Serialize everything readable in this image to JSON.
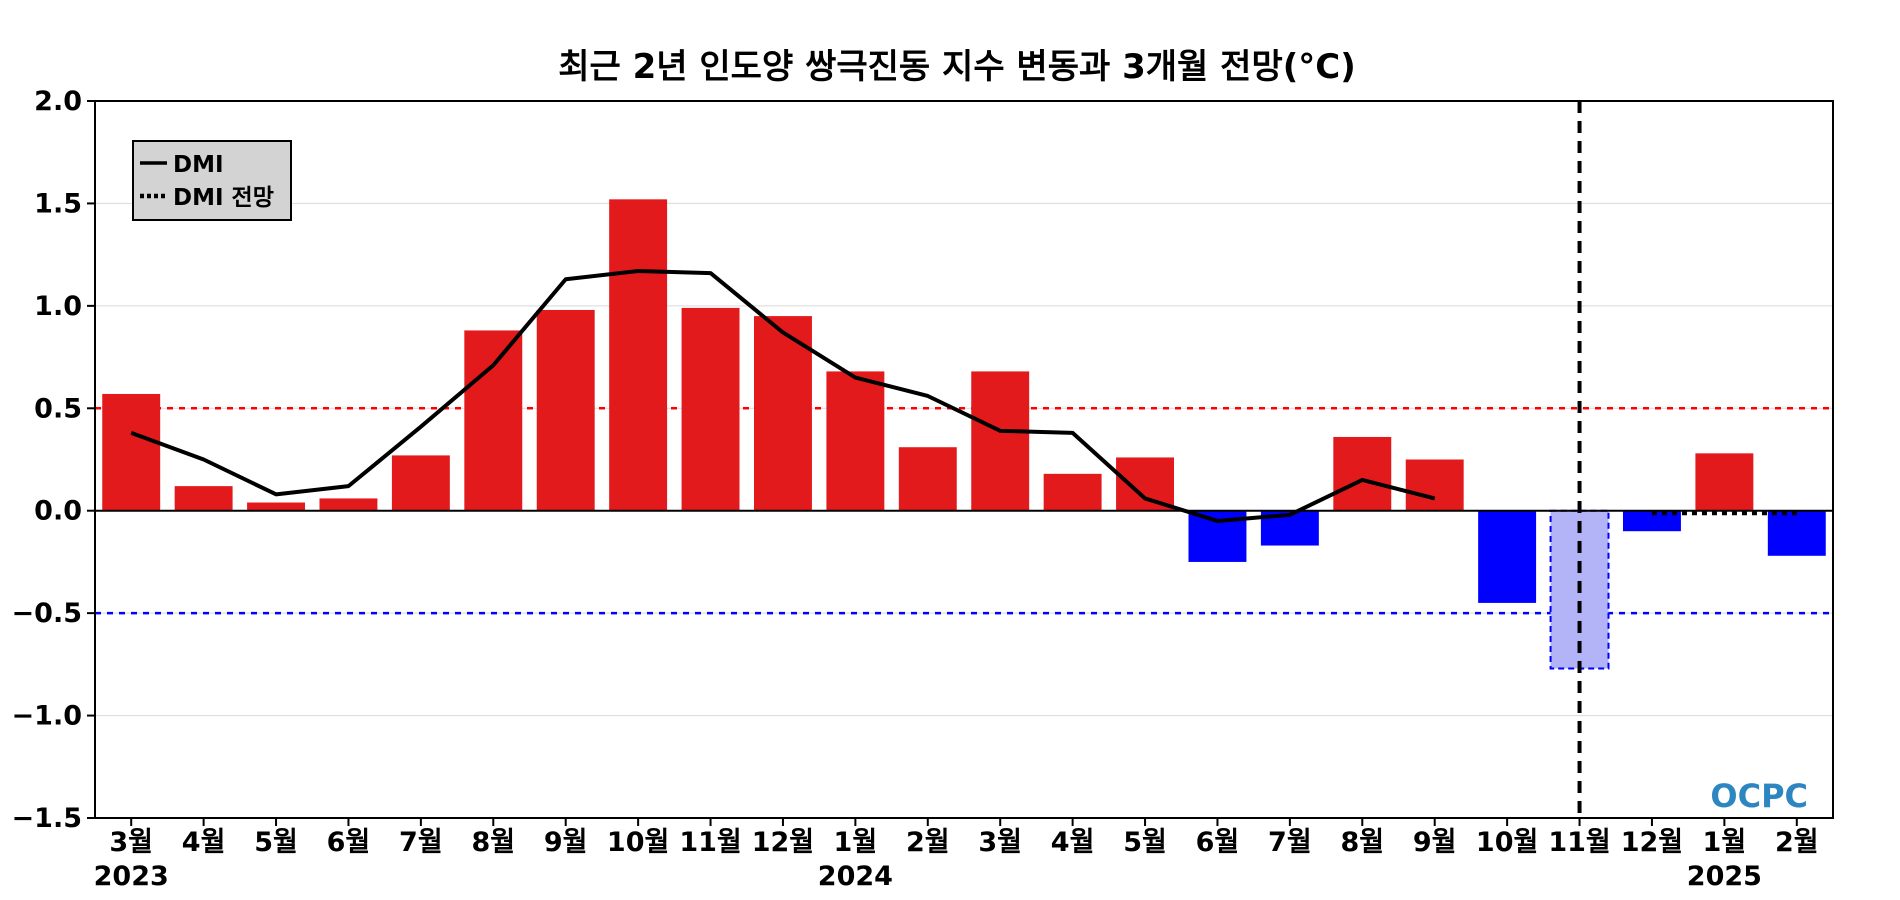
{
  "chart_data": {
    "type": "bar",
    "title": "최근 2년 인도양 쌍극진동 지수 변동과 3개월 전망(°C)",
    "xlabel": "",
    "ylabel": "",
    "ylim": [
      -1.5,
      2.0
    ],
    "yticks": [
      "2.0",
      "1.5",
      "1.0",
      "0.5",
      "0.0",
      "−0.5",
      "−1.0",
      "−1.5"
    ],
    "ytick_values": [
      2.0,
      1.5,
      1.0,
      0.5,
      0.0,
      -0.5,
      -1.0,
      -1.5
    ],
    "categories": [
      "3월",
      "4월",
      "5월",
      "6월",
      "7월",
      "8월",
      "9월",
      "10월",
      "11월",
      "12월",
      "1월",
      "2월",
      "3월",
      "4월",
      "5월",
      "6월",
      "7월",
      "8월",
      "9월",
      "10월",
      "11월",
      "12월",
      "1월",
      "2월"
    ],
    "year_labels": [
      {
        "label": "2023",
        "index": 0
      },
      {
        "label": "2024",
        "index": 10
      },
      {
        "label": "2025",
        "index": 22
      }
    ],
    "bar_values": [
      0.57,
      0.12,
      0.04,
      0.06,
      0.27,
      0.88,
      0.98,
      1.52,
      0.99,
      0.95,
      0.68,
      0.31,
      0.68,
      0.18,
      0.26,
      -0.25,
      -0.17,
      0.36,
      0.25,
      -0.45,
      -0.77,
      -0.1,
      0.28,
      -0.22
    ],
    "bar_kinds": [
      "obs",
      "obs",
      "obs",
      "obs",
      "obs",
      "obs",
      "obs",
      "obs",
      "obs",
      "obs",
      "obs",
      "obs",
      "obs",
      "obs",
      "obs",
      "obs",
      "obs",
      "obs",
      "obs",
      "obs",
      "current",
      "obs",
      "obs",
      "obs"
    ],
    "series": [
      {
        "name": "DMI",
        "style": "solid",
        "values": [
          0.38,
          0.25,
          0.08,
          0.12,
          0.41,
          0.71,
          1.13,
          1.17,
          1.16,
          0.87,
          0.65,
          0.56,
          0.39,
          0.38,
          0.06,
          -0.05,
          -0.02,
          0.15,
          0.06,
          null,
          null,
          null,
          null,
          null
        ]
      },
      {
        "name": "DMI 전망",
        "style": "dotted",
        "values": [
          null,
          null,
          null,
          null,
          null,
          null,
          null,
          null,
          null,
          null,
          null,
          null,
          null,
          null,
          null,
          null,
          null,
          null,
          null,
          null,
          null,
          -0.01,
          -0.01,
          -0.01
        ]
      }
    ],
    "threshold_lines": [
      0.5,
      -0.5
    ],
    "forecast_divider_index": 20,
    "legend_placement": "top-left",
    "grid": true,
    "colors": {
      "positive": "#e31a1c",
      "negative": "#0000ff",
      "current_fill": "#b3b3f7",
      "current_border": "#0000ff",
      "upper_threshold": "#ff0000",
      "lower_threshold": "#0000ff",
      "line": "#000000",
      "grid": "#d9d9d9"
    }
  },
  "legend": {
    "observed_label": "DMI",
    "forecast_label": "DMI 전망"
  },
  "logo": {
    "text": "OCPC"
  }
}
